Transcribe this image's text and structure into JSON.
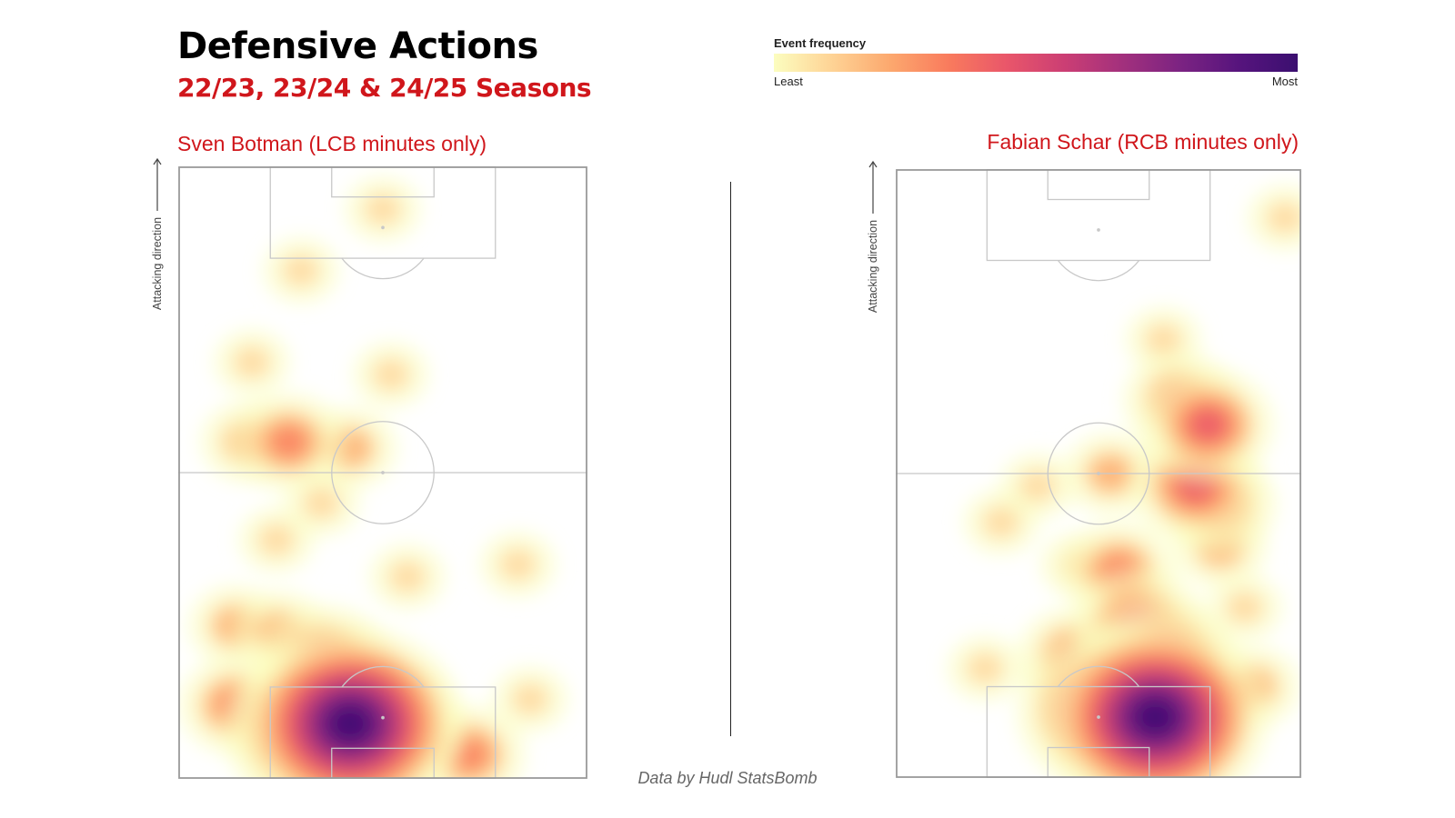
{
  "header": {
    "title": "Defensive Actions",
    "subtitle": "22/23, 23/24 & 24/25 Seasons"
  },
  "legend": {
    "title": "Event frequency",
    "least_label": "Least",
    "most_label": "Most",
    "colors": [
      "#fcfdbf",
      "#fed395",
      "#fca86e",
      "#f97b5d",
      "#e9566a",
      "#cb3e74",
      "#a2307d",
      "#7b2382",
      "#56147d",
      "#3b0f70"
    ]
  },
  "colors": {
    "accent": "#d0161b",
    "pitch_lines": "#c8c8c8",
    "pitch_outline": "#9a9a9a"
  },
  "attacking_direction_label": "Attacking direction",
  "source": "Data by Hudl StatsBomb",
  "chart_data": [
    {
      "type": "heatmap",
      "label": "Sven Botman (LCB minutes only)",
      "orientation": "vertical, attacking upward",
      "colorscale": "magma_r",
      "grid": false,
      "hotspots": [
        {
          "x": 0.42,
          "y": 0.09,
          "intensity": 1.0
        },
        {
          "x": 0.34,
          "y": 0.08,
          "intensity": 0.8
        },
        {
          "x": 0.51,
          "y": 0.09,
          "intensity": 0.6
        },
        {
          "x": 0.36,
          "y": 0.19,
          "intensity": 0.45
        },
        {
          "x": 0.14,
          "y": 0.12,
          "intensity": 0.33
        },
        {
          "x": 0.71,
          "y": 0.04,
          "intensity": 0.3
        },
        {
          "x": 0.25,
          "y": 0.24,
          "intensity": 0.22
        },
        {
          "x": 0.14,
          "y": 0.25,
          "intensity": 0.2
        },
        {
          "x": 0.27,
          "y": 0.55,
          "intensity": 0.35
        },
        {
          "x": 0.42,
          "y": 0.54,
          "intensity": 0.2
        },
        {
          "x": 0.17,
          "y": 0.55,
          "intensity": 0.22
        },
        {
          "x": 0.35,
          "y": 0.45,
          "intensity": 0.12
        },
        {
          "x": 0.24,
          "y": 0.39,
          "intensity": 0.12
        },
        {
          "x": 0.18,
          "y": 0.68,
          "intensity": 0.1
        },
        {
          "x": 0.5,
          "y": 0.93,
          "intensity": 0.08
        },
        {
          "x": 0.3,
          "y": 0.83,
          "intensity": 0.06
        },
        {
          "x": 0.86,
          "y": 0.13,
          "intensity": 0.07
        },
        {
          "x": 0.83,
          "y": 0.35,
          "intensity": 0.05
        },
        {
          "x": 0.52,
          "y": 0.66,
          "intensity": 0.06
        },
        {
          "x": 0.56,
          "y": 0.33,
          "intensity": 0.07
        }
      ]
    },
    {
      "type": "heatmap",
      "label": "Fabian Schar (RCB minutes only)",
      "orientation": "vertical, attacking upward",
      "colorscale": "magma_r",
      "grid": false,
      "hotspots": [
        {
          "x": 0.64,
          "y": 0.1,
          "intensity": 1.0
        },
        {
          "x": 0.53,
          "y": 0.11,
          "intensity": 0.8
        },
        {
          "x": 0.66,
          "y": 0.19,
          "intensity": 0.55
        },
        {
          "x": 0.6,
          "y": 0.25,
          "intensity": 0.42
        },
        {
          "x": 0.44,
          "y": 0.2,
          "intensity": 0.3
        },
        {
          "x": 0.55,
          "y": 0.34,
          "intensity": 0.3
        },
        {
          "x": 0.77,
          "y": 0.58,
          "intensity": 0.42
        },
        {
          "x": 0.74,
          "y": 0.48,
          "intensity": 0.4
        },
        {
          "x": 0.8,
          "y": 0.45,
          "intensity": 0.3
        },
        {
          "x": 0.7,
          "y": 0.62,
          "intensity": 0.3
        },
        {
          "x": 0.53,
          "y": 0.5,
          "intensity": 0.27
        },
        {
          "x": 0.8,
          "y": 0.38,
          "intensity": 0.22
        },
        {
          "x": 0.88,
          "y": 0.15,
          "intensity": 0.22
        },
        {
          "x": 0.86,
          "y": 0.28,
          "intensity": 0.15
        },
        {
          "x": 0.45,
          "y": 0.35,
          "intensity": 0.15
        },
        {
          "x": 0.35,
          "y": 0.48,
          "intensity": 0.12
        },
        {
          "x": 0.66,
          "y": 0.72,
          "intensity": 0.12
        },
        {
          "x": 0.96,
          "y": 0.92,
          "intensity": 0.06
        },
        {
          "x": 0.26,
          "y": 0.42,
          "intensity": 0.06
        },
        {
          "x": 0.22,
          "y": 0.18,
          "intensity": 0.05
        }
      ]
    }
  ]
}
